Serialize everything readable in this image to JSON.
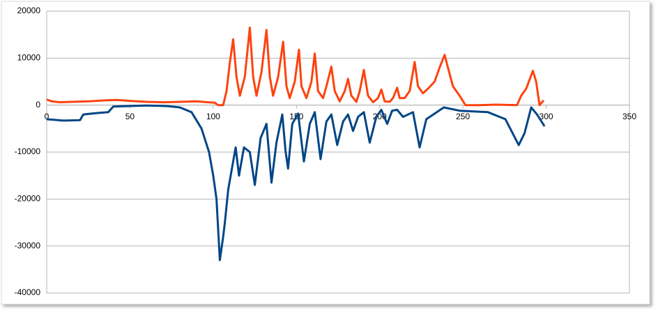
{
  "chart_data": {
    "type": "line",
    "series": [
      {
        "color": "#ff420e",
        "x": [
          0,
          3,
          8,
          15,
          25,
          35,
          42,
          50,
          60,
          70,
          80,
          90,
          97,
          101,
          103,
          106,
          108,
          110,
          112,
          114,
          116,
          119,
          122,
          124,
          126,
          129,
          132,
          134,
          136,
          139,
          142,
          144,
          146,
          149,
          151.5,
          153,
          156,
          159,
          161,
          163,
          166,
          168,
          171,
          173,
          176,
          179,
          181,
          183,
          186,
          188,
          190.5,
          193,
          196,
          199,
          201,
          203,
          206,
          208,
          210.5,
          212,
          215,
          218,
          221,
          223,
          226,
          229,
          233,
          236,
          239,
          241,
          244,
          248,
          251.5,
          260,
          270,
          282.5,
          285,
          288,
          292,
          294,
          296,
          298.5
        ],
        "values": [
          1200,
          800,
          600,
          700,
          800,
          1000,
          1100,
          900,
          700,
          600,
          700,
          800,
          600,
          500,
          0,
          0,
          3000,
          9000,
          14000,
          6000,
          2000,
          6000,
          16500,
          6000,
          2000,
          7000,
          16000,
          6000,
          2000,
          6000,
          13500,
          4000,
          1500,
          5000,
          11800,
          4000,
          1500,
          5000,
          11000,
          3000,
          1500,
          4000,
          8200,
          3000,
          800,
          3000,
          5600,
          2000,
          700,
          3000,
          7500,
          2000,
          600,
          1500,
          3300,
          800,
          700,
          1500,
          3700,
          1500,
          1500,
          3000,
          9200,
          4000,
          2500,
          3500,
          5000,
          8000,
          10700,
          8000,
          4000,
          2000,
          0,
          0,
          100,
          0,
          2000,
          3500,
          7300,
          5000,
          0,
          1000
        ]
      },
      {
        "color": "#004586",
        "x": [
          0,
          10,
          20,
          22,
          30,
          37,
          40,
          50,
          60,
          72,
          80,
          87,
          93,
          97.5,
          100,
          102,
          104,
          106,
          107,
          109,
          112,
          113.5,
          115.5,
          118.5,
          122,
          125,
          128.5,
          132,
          135,
          138,
          141.5,
          143.5,
          145,
          147.5,
          151,
          154.5,
          158,
          161,
          164.5,
          168,
          171,
          174.5,
          178,
          181,
          184,
          187,
          190.5,
          194,
          198,
          201,
          204.5,
          207.5,
          210.5,
          214,
          220,
          224,
          228,
          238.5,
          248,
          265,
          275.5,
          283.5,
          287,
          291,
          294.5,
          299
        ],
        "values": [
          -3000,
          -3300,
          -3200,
          -2000,
          -1700,
          -1500,
          -300,
          -200,
          -100,
          -200,
          -500,
          -1500,
          -5000,
          -10000,
          -15000,
          -20000,
          -33000,
          -28000,
          -25000,
          -18000,
          -12000,
          -9000,
          -15000,
          -9000,
          -10000,
          -17000,
          -7000,
          -4000,
          -16500,
          -8000,
          -2000,
          -10000,
          -13500,
          -4000,
          -1800,
          -12000,
          -4000,
          -1500,
          -11500,
          -3500,
          -2000,
          -8500,
          -3500,
          -2000,
          -5500,
          -2500,
          -1500,
          -8000,
          -2500,
          -1000,
          -4000,
          -1200,
          -1000,
          -2500,
          -1500,
          -9000,
          -3000,
          -500,
          -1200,
          -1500,
          -3000,
          -8500,
          -6000,
          -500,
          -2000,
          -4500
        ]
      }
    ],
    "xlim": [
      0,
      350
    ],
    "xticks": [
      0,
      50,
      100,
      150,
      200,
      250,
      300,
      350
    ],
    "ylim": [
      -40000,
      20000
    ],
    "yticks": [
      -40000,
      -30000,
      -20000,
      -10000,
      0,
      10000,
      20000
    ],
    "grid": true
  }
}
